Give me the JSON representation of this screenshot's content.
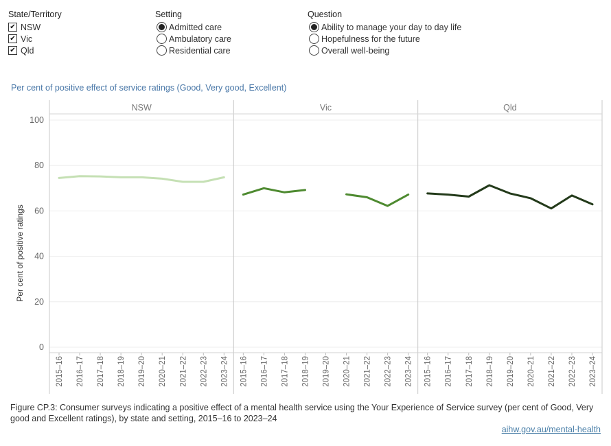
{
  "filters": {
    "state": {
      "title": "State/Territory",
      "options": [
        {
          "label": "NSW",
          "checked": true
        },
        {
          "label": "Vic",
          "checked": true
        },
        {
          "label": "Qld",
          "checked": true
        }
      ]
    },
    "setting": {
      "title": "Setting",
      "options": [
        {
          "label": "Admitted care",
          "selected": true
        },
        {
          "label": "Ambulatory care",
          "selected": false
        },
        {
          "label": "Residential care",
          "selected": false
        }
      ]
    },
    "question": {
      "title": "Question",
      "options": [
        {
          "label": "Ability to manage your day to day life",
          "selected": true
        },
        {
          "label": "Hopefulness for the future",
          "selected": false
        },
        {
          "label": "Overall well-being",
          "selected": false
        }
      ]
    }
  },
  "chart_title": "Per cent of positive effect of service ratings (Good, Very good, Excellent)",
  "chart_data": {
    "type": "line",
    "title": "Per cent of positive effect of service ratings (Good, Very good, Excellent)",
    "ylabel": "Per cent of positive ratings",
    "xlabel": "",
    "ylim": [
      0,
      100
    ],
    "yticks": [
      0,
      20,
      40,
      60,
      80,
      100
    ],
    "categories": [
      "2015–16",
      "2016–17",
      "2017–18",
      "2018–19",
      "2019–20",
      "2020–21",
      "2021–22",
      "2022–23",
      "2023–24"
    ],
    "panels": [
      {
        "label": "NSW",
        "color": "#c5e0b4",
        "values": [
          74.5,
          75.3,
          75.2,
          74.8,
          74.8,
          74.2,
          72.8,
          72.8,
          74.8
        ]
      },
      {
        "label": "Vic",
        "color": "#4e8a30",
        "values": [
          67.2,
          70.0,
          68.2,
          69.2,
          null,
          67.3,
          66.0,
          62.2,
          67.2
        ]
      },
      {
        "label": "Qld",
        "color": "#233a1a",
        "values": [
          67.7,
          67.2,
          66.3,
          71.3,
          67.7,
          65.6,
          61.1,
          66.8,
          62.9
        ]
      }
    ],
    "grid": true
  },
  "caption": "Figure CP.3: Consumer surveys indicating a positive effect of a mental health service using the Your Experience of Service survey (per cent of Good, Very good and Excellent ratings), by state and setting, 2015–16 to 2023–24",
  "source_link": "aihw.gov.au/mental-health"
}
